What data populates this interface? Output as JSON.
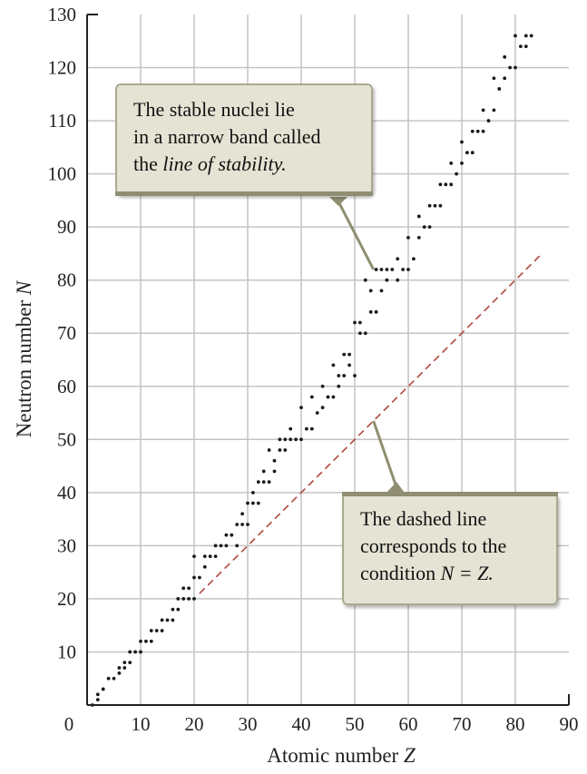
{
  "chart_data": {
    "type": "scatter",
    "title": "",
    "xlabel": "Atomic number",
    "xlabel_var": "Z",
    "ylabel": "Neutron number",
    "ylabel_var": "N",
    "xlim": [
      0,
      90
    ],
    "ylim": [
      0,
      130
    ],
    "x_ticks": [
      "0",
      "10",
      "20",
      "30",
      "40",
      "50",
      "60",
      "70",
      "80",
      "90"
    ],
    "y_ticks": [
      "10",
      "20",
      "30",
      "40",
      "50",
      "60",
      "70",
      "80",
      "90",
      "100",
      "110",
      "120",
      "130"
    ],
    "grid": true,
    "colors": {
      "points": "#1a1a1a",
      "grid": "#c4c4c4",
      "dashed_line": "#b0473f",
      "pointer": "#8f8e72"
    },
    "reference_line": {
      "label": "N = Z",
      "from": [
        21,
        21
      ],
      "to": [
        85,
        85
      ],
      "style": "dashed"
    },
    "points": {
      "x": [
        1,
        2,
        2,
        3,
        4,
        5,
        6,
        6,
        7,
        7,
        8,
        8,
        9,
        10,
        10,
        11,
        12,
        12,
        13,
        14,
        14,
        15,
        16,
        16,
        17,
        17,
        18,
        18,
        19,
        19,
        20,
        20,
        20,
        21,
        22,
        22,
        23,
        24,
        24,
        25,
        26,
        26,
        27,
        28,
        28,
        29,
        29,
        30,
        30,
        31,
        31,
        32,
        32,
        33,
        33,
        34,
        34,
        35,
        35,
        36,
        36,
        37,
        37,
        38,
        38,
        39,
        40,
        40,
        41,
        42,
        42,
        43,
        44,
        44,
        45,
        46,
        46,
        47,
        47,
        48,
        48,
        49,
        49,
        50,
        50,
        51,
        51,
        52,
        52,
        53,
        53,
        54,
        54,
        55,
        55,
        56,
        56,
        57,
        58,
        58,
        59,
        60,
        60,
        61,
        62,
        62,
        63,
        64,
        64,
        65,
        66,
        66,
        67,
        68,
        68,
        69,
        70,
        70,
        71,
        72,
        72,
        73,
        74,
        74,
        75,
        76,
        76,
        77,
        78,
        78,
        79,
        80,
        80,
        81,
        82,
        82,
        83
      ],
      "y": [
        0,
        1,
        2,
        3,
        5,
        5,
        6,
        7,
        7,
        8,
        8,
        10,
        10,
        10,
        12,
        12,
        12,
        14,
        14,
        14,
        16,
        16,
        16,
        18,
        18,
        20,
        20,
        22,
        20,
        22,
        20,
        24,
        28,
        24,
        26,
        28,
        28,
        28,
        30,
        30,
        30,
        32,
        32,
        30,
        34,
        34,
        36,
        34,
        38,
        38,
        40,
        38,
        42,
        42,
        44,
        42,
        48,
        44,
        46,
        48,
        50,
        48,
        50,
        50,
        52,
        50,
        50,
        56,
        52,
        52,
        58,
        55,
        56,
        60,
        58,
        58,
        64,
        60,
        62,
        62,
        66,
        64,
        66,
        62,
        72,
        70,
        72,
        70,
        80,
        74,
        78,
        74,
        82,
        78,
        82,
        80,
        82,
        82,
        80,
        84,
        82,
        82,
        88,
        84,
        88,
        92,
        90,
        90,
        94,
        94,
        94,
        98,
        98,
        98,
        102,
        100,
        102,
        106,
        104,
        104,
        108,
        108,
        108,
        112,
        110,
        112,
        118,
        116,
        118,
        122,
        120,
        120,
        126,
        124,
        124,
        126,
        126
      ]
    }
  },
  "callouts": {
    "stability": {
      "line1": "The stable nuclei lie",
      "line2": "in a narrow band called",
      "line3_prefix": "the ",
      "line3_italic": "line of stability."
    },
    "dashed": {
      "line1": "The dashed line",
      "line2": "corresponds to the",
      "line3_prefix": "condition ",
      "line3_italic": "N = Z."
    }
  }
}
